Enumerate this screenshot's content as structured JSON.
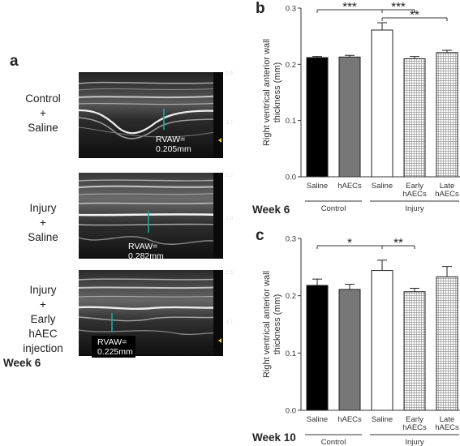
{
  "panels": {
    "a": {
      "letter": "a",
      "week_label": "Week 6",
      "images": [
        {
          "group_lines": [
            "Control",
            "+",
            "Saline"
          ],
          "measurement_lines": [
            "RVAW=",
            "0.205mm"
          ],
          "scale_top": "2.9",
          "scale_mid": "3.7"
        },
        {
          "group_lines": [
            "Injury",
            "+",
            "Saline"
          ],
          "measurement_lines": [
            "RVAW=",
            "0.282mm"
          ],
          "scale_top": "2.2",
          "scale_mid": "3.0"
        },
        {
          "group_lines": [
            "Injury",
            "+",
            "Early",
            "hAEC",
            "injection"
          ],
          "measurement_lines": [
            "RVAW=",
            "0.225mm"
          ],
          "scale_top": "2.9",
          "scale_mid": "3.7"
        }
      ]
    },
    "b": {
      "letter": "b",
      "week_label": "Week 6"
    },
    "c": {
      "letter": "c",
      "week_label": "Week 10"
    }
  },
  "colors": {
    "bar_fill_black": "#000000",
    "bar_fill_grey": "#777777",
    "bar_fill_white": "#ffffff",
    "hatch": "#9a9a9a",
    "trace": "#1aa7a0"
  },
  "chart_data": [
    {
      "panel": "b",
      "type": "bar",
      "ylabel": "Right ventrical anterior wall thickness (mm)",
      "ylim": [
        0.0,
        0.3
      ],
      "yticks": [
        "0.0",
        "0.1",
        "0.2",
        "0.3"
      ],
      "categories": [
        "Saline",
        "hAECs",
        "Saline",
        "Early hAECs",
        "Late hAECs"
      ],
      "category_lines": [
        [
          "Saline"
        ],
        [
          "hAECs"
        ],
        [
          "Saline"
        ],
        [
          "Early",
          "hAECs"
        ],
        [
          "Late",
          "hAECs"
        ]
      ],
      "values": [
        0.212,
        0.213,
        0.261,
        0.21,
        0.221
      ],
      "errors": [
        0.002,
        0.003,
        0.013,
        0.004,
        0.004
      ],
      "fills": [
        "black",
        "grey",
        "white",
        "hatch",
        "hatch"
      ],
      "groups": [
        {
          "label": "Control",
          "from": 0,
          "to": 1
        },
        {
          "label": "Injury",
          "from": 2,
          "to": 4
        }
      ],
      "significance": [
        {
          "from": 0,
          "to": 2,
          "label": "***"
        },
        {
          "from": 2,
          "to": 3,
          "label": "***"
        },
        {
          "from": 2,
          "to": 4,
          "label": "**"
        }
      ]
    },
    {
      "panel": "c",
      "type": "bar",
      "ylabel": "Right ventrical anterior wall thickness (mm)",
      "ylim": [
        0.0,
        0.3
      ],
      "yticks": [
        "0.0",
        "0.1",
        "0.2",
        "0.3"
      ],
      "categories": [
        "Saline",
        "hAECs",
        "Saline",
        "Early hAECs",
        "Late hAECs"
      ],
      "category_lines": [
        [
          "Saline"
        ],
        [
          "hAECs"
        ],
        [
          "Saline"
        ],
        [
          "Early",
          "hAECs"
        ],
        [
          "Late",
          "hAECs"
        ]
      ],
      "values": [
        0.218,
        0.211,
        0.244,
        0.207,
        0.233
      ],
      "errors": [
        0.011,
        0.009,
        0.018,
        0.006,
        0.018
      ],
      "fills": [
        "black",
        "grey",
        "white",
        "hatch",
        "hatch"
      ],
      "groups": [
        {
          "label": "Control",
          "from": 0,
          "to": 1
        },
        {
          "label": "Injury",
          "from": 2,
          "to": 4
        }
      ],
      "significance": [
        {
          "from": 0,
          "to": 2,
          "label": "*"
        },
        {
          "from": 2,
          "to": 3,
          "label": "**"
        }
      ]
    }
  ]
}
